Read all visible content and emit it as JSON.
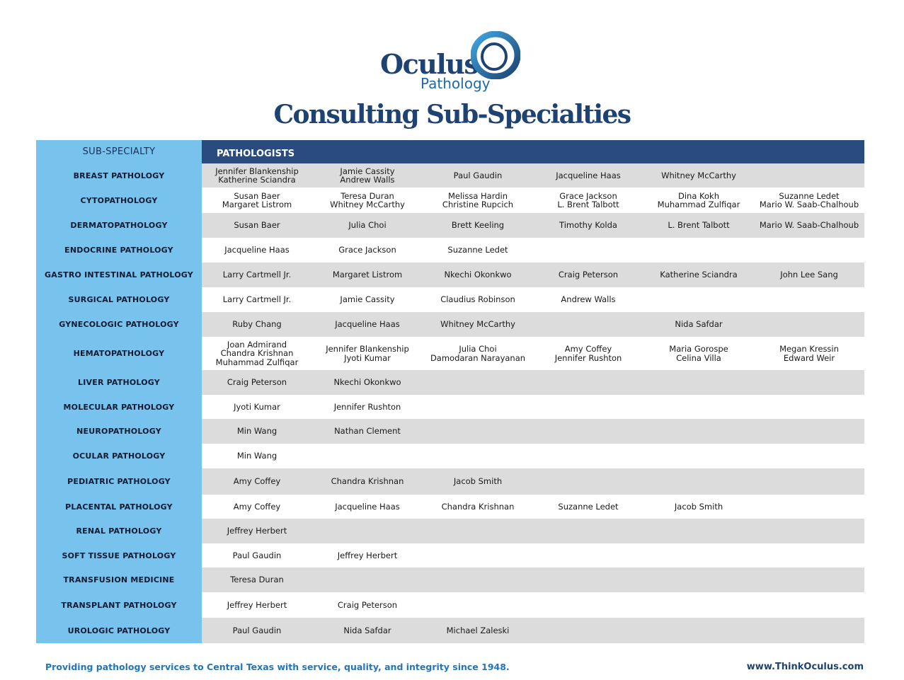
{
  "logo": {
    "word": "Oculus",
    "sub": "Pathology"
  },
  "title": "Consulting Sub-Specialties",
  "table": {
    "left_header": "SUB-SPECIALTY",
    "right_header": "PATHOLOGISTS",
    "rows": [
      {
        "label": "BREAST PATHOLOGY",
        "cells": [
          [
            "Jennifer Blankenship",
            "Katherine Sciandra"
          ],
          [
            "Jamie Cassity",
            "Andrew Walls"
          ],
          [
            "Paul Gaudin"
          ],
          [
            "Jacqueline Haas"
          ],
          [
            "Whitney McCarthy"
          ],
          []
        ]
      },
      {
        "label": "CYTOPATHOLOGY",
        "cells": [
          [
            "Susan Baer",
            "Margaret Listrom"
          ],
          [
            "Teresa Duran",
            "Whitney McCarthy"
          ],
          [
            "Melissa Hardin",
            "Christine Rupcich"
          ],
          [
            "Grace Jackson",
            "L. Brent Talbott"
          ],
          [
            "Dina Kokh",
            "Muhammad Zulfiqar"
          ],
          [
            "Suzanne Ledet",
            "Mario W. Saab-Chalhoub"
          ]
        ]
      },
      {
        "label": "DERMATOPATHOLOGY",
        "cells": [
          [
            "Susan Baer"
          ],
          [
            "Julia Choi"
          ],
          [
            "Brett Keeling"
          ],
          [
            "Timothy Kolda"
          ],
          [
            "L. Brent Talbott"
          ],
          [
            "Mario W. Saab-Chalhoub"
          ]
        ]
      },
      {
        "label": "ENDOCRINE PATHOLOGY",
        "cells": [
          [
            "Jacqueline Haas"
          ],
          [
            "Grace Jackson"
          ],
          [
            "Suzanne Ledet"
          ],
          [],
          [],
          []
        ]
      },
      {
        "label": "GASTRO INTESTINAL PATHOLOGY",
        "cells": [
          [
            "Larry Cartmell Jr."
          ],
          [
            "Margaret Listrom"
          ],
          [
            "Nkechi Okonkwo"
          ],
          [
            "Craig Peterson"
          ],
          [
            "Katherine Sciandra"
          ],
          [
            "John Lee Sang"
          ]
        ]
      },
      {
        "label": "SURGICAL PATHOLOGY",
        "cells": [
          [
            "Larry Cartmell Jr."
          ],
          [
            "Jamie Cassity"
          ],
          [
            "Claudius Robinson"
          ],
          [
            "Andrew Walls"
          ],
          [],
          []
        ]
      },
      {
        "label": "GYNECOLOGIC PATHOLOGY",
        "cells": [
          [
            "Ruby Chang"
          ],
          [
            "Jacqueline Haas"
          ],
          [
            "Whitney McCarthy"
          ],
          [],
          [
            "Nida Safdar"
          ],
          []
        ]
      },
      {
        "label": "HEMATOPATHOLOGY",
        "cells": [
          [
            "Joan Admirand",
            "Chandra Krishnan",
            "Muhammad Zulfiqar"
          ],
          [
            "Jennifer Blankenship",
            "Jyoti Kumar"
          ],
          [
            "Julia Choi",
            "Damodaran Narayanan"
          ],
          [
            "Amy Coffey",
            "Jennifer Rushton"
          ],
          [
            "Maria Gorospe",
            "Celina Villa"
          ],
          [
            "Megan Kressin",
            "Edward Weir"
          ]
        ]
      },
      {
        "label": "LIVER PATHOLOGY",
        "cells": [
          [
            "Craig Peterson"
          ],
          [
            "Nkechi Okonkwo"
          ],
          [],
          [],
          [],
          []
        ]
      },
      {
        "label": "MOLECULAR PATHOLOGY",
        "cells": [
          [
            "Jyoti Kumar"
          ],
          [
            "Jennifer Rushton"
          ],
          [],
          [],
          [],
          []
        ]
      },
      {
        "label": "NEUROPATHOLOGY",
        "cells": [
          [
            "Min Wang"
          ],
          [
            "Nathan Clement"
          ],
          [],
          [],
          [],
          []
        ]
      },
      {
        "label": "OCULAR PATHOLOGY",
        "cells": [
          [
            "Min Wang"
          ],
          [],
          [],
          [],
          [],
          []
        ]
      },
      {
        "label": "PEDIATRIC PATHOLOGY",
        "cells": [
          [
            "Amy Coffey"
          ],
          [
            "Chandra Krishnan"
          ],
          [
            "Jacob Smith"
          ],
          [],
          [],
          []
        ]
      },
      {
        "label": "PLACENTAL PATHOLOGY",
        "cells": [
          [
            "Amy Coffey"
          ],
          [
            "Jacqueline Haas"
          ],
          [
            "Chandra Krishnan"
          ],
          [
            "Suzanne Ledet"
          ],
          [
            "Jacob Smith"
          ],
          []
        ]
      },
      {
        "label": "RENAL PATHOLOGY",
        "cells": [
          [
            "Jeffrey Herbert"
          ],
          [],
          [],
          [],
          [],
          []
        ]
      },
      {
        "label": "SOFT TISSUE PATHOLOGY",
        "cells": [
          [
            "Paul Gaudin"
          ],
          [
            "Jeffrey Herbert"
          ],
          [],
          [],
          [],
          []
        ]
      },
      {
        "label": "TRANSFUSION MEDICINE",
        "cells": [
          [
            "Teresa Duran"
          ],
          [],
          [],
          [],
          [],
          []
        ]
      },
      {
        "label": "TRANSPLANT PATHOLOGY",
        "cells": [
          [
            "Jeffrey Herbert"
          ],
          [
            "Craig Peterson"
          ],
          [],
          [],
          [],
          []
        ]
      },
      {
        "label": "UROLOGIC PATHOLOGY",
        "cells": [
          [
            "Paul Gaudin"
          ],
          [
            "Nida Safdar"
          ],
          [
            "Michael Zaleski"
          ],
          [],
          [],
          []
        ]
      }
    ]
  },
  "footer": {
    "tagline": "Providing pathology services to Central Texas with service, quality, and integrity since 1948.",
    "url": "www.ThinkOculus.com"
  },
  "colors": {
    "brand_navy": "#1e4272",
    "brand_blue": "#2574b6",
    "header_navy": "#2a4b7e",
    "sidebar_blue": "#78c2ee",
    "row_shade": "#dcdcdc"
  }
}
